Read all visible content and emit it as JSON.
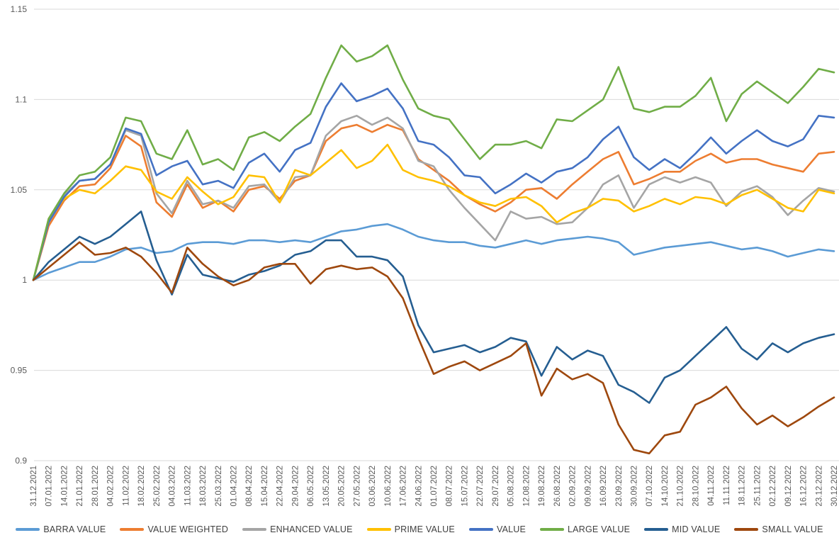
{
  "colors": {
    "background": "#FFFFFF",
    "gridline": "#D9D9D9",
    "axis_text": "#595959",
    "legend_text": "#404040"
  },
  "chart_data": {
    "type": "line",
    "title": "",
    "xlabel": "",
    "ylabel": "",
    "grid": "horizontal",
    "legend_position": "bottom",
    "ylim": [
      0.9,
      1.15
    ],
    "y_ticks": {
      "values": [
        0.9,
        0.95,
        1.0,
        1.05,
        1.1,
        1.15
      ],
      "labels": [
        "0.9",
        "0.95",
        "1",
        "1.05",
        "1.1",
        "1.15"
      ]
    },
    "x_labels": [
      "31.12.2021",
      "07.01.2022",
      "14.01.2022",
      "21.01.2022",
      "28.01.2022",
      "04.02.2022",
      "11.02.2022",
      "18.02.2022",
      "25.02.2022",
      "04.03.2022",
      "11.03.2022",
      "18.03.2022",
      "25.03.2022",
      "01.04.2022",
      "08.04.2022",
      "15.04.2022",
      "22.04.2022",
      "29.04.2022",
      "06.05.2022",
      "13.05.2022",
      "20.05.2022",
      "27.05.2022",
      "03.06.2022",
      "10.06.2022",
      "17.06.2022",
      "24.06.2022",
      "01.07.2022",
      "08.07.2022",
      "15.07.2022",
      "22.07.2022",
      "29.07.2022",
      "05.08.2022",
      "12.08.2022",
      "19.08.2022",
      "26.08.2022",
      "02.09.2022",
      "09.09.2022",
      "16.09.2022",
      "23.09.2022",
      "30.09.2022",
      "07.10.2022",
      "14.10.2022",
      "21.10.2022",
      "28.10.2022",
      "04.11.2022",
      "11.11.2022",
      "18.11.2022",
      "25.11.2022",
      "02.12.2022",
      "09.12.2022",
      "16.12.2022",
      "23.12.2022",
      "30.12.2022"
    ],
    "series": [
      {
        "name": "BARRA VALUE",
        "color": "#5B9BD5",
        "values": [
          1.0,
          1.004,
          1.007,
          1.01,
          1.01,
          1.013,
          1.017,
          1.018,
          1.015,
          1.016,
          1.02,
          1.021,
          1.021,
          1.02,
          1.022,
          1.022,
          1.021,
          1.022,
          1.021,
          1.024,
          1.027,
          1.028,
          1.03,
          1.031,
          1.028,
          1.024,
          1.022,
          1.021,
          1.021,
          1.019,
          1.018,
          1.02,
          1.022,
          1.02,
          1.022,
          1.023,
          1.024,
          1.023,
          1.021,
          1.014,
          1.016,
          1.018,
          1.019,
          1.02,
          1.021,
          1.019,
          1.017,
          1.018,
          1.016,
          1.013,
          1.015,
          1.017,
          1.016
        ]
      },
      {
        "name": "VALUE WEIGHTED",
        "color": "#ED7D31",
        "values": [
          1.0,
          1.03,
          1.044,
          1.052,
          1.053,
          1.062,
          1.08,
          1.074,
          1.043,
          1.035,
          1.053,
          1.04,
          1.044,
          1.038,
          1.05,
          1.052,
          1.045,
          1.055,
          1.058,
          1.077,
          1.084,
          1.086,
          1.082,
          1.086,
          1.083,
          1.067,
          1.061,
          1.055,
          1.047,
          1.042,
          1.038,
          1.043,
          1.05,
          1.051,
          1.045,
          1.053,
          1.06,
          1.067,
          1.071,
          1.053,
          1.056,
          1.06,
          1.06,
          1.066,
          1.07,
          1.065,
          1.067,
          1.067,
          1.064,
          1.062,
          1.06,
          1.07,
          1.071
        ]
      },
      {
        "name": "ENHANCED VALUE",
        "color": "#A5A5A5",
        "values": [
          1.0,
          1.033,
          1.047,
          1.055,
          1.056,
          1.064,
          1.083,
          1.08,
          1.048,
          1.037,
          1.055,
          1.042,
          1.044,
          1.04,
          1.052,
          1.053,
          1.043,
          1.057,
          1.058,
          1.08,
          1.088,
          1.091,
          1.086,
          1.09,
          1.084,
          1.066,
          1.063,
          1.05,
          1.04,
          1.031,
          1.022,
          1.038,
          1.034,
          1.035,
          1.031,
          1.032,
          1.04,
          1.053,
          1.058,
          1.04,
          1.053,
          1.057,
          1.054,
          1.057,
          1.054,
          1.041,
          1.049,
          1.052,
          1.046,
          1.036,
          1.044,
          1.051,
          1.049
        ]
      },
      {
        "name": "PRIME VALUE",
        "color": "#FFC000",
        "values": [
          1.0,
          1.034,
          1.045,
          1.05,
          1.048,
          1.055,
          1.063,
          1.061,
          1.049,
          1.045,
          1.057,
          1.049,
          1.042,
          1.046,
          1.058,
          1.057,
          1.043,
          1.061,
          1.058,
          1.065,
          1.072,
          1.062,
          1.066,
          1.075,
          1.061,
          1.057,
          1.055,
          1.052,
          1.047,
          1.043,
          1.041,
          1.045,
          1.046,
          1.041,
          1.032,
          1.037,
          1.04,
          1.045,
          1.044,
          1.038,
          1.041,
          1.045,
          1.042,
          1.046,
          1.045,
          1.042,
          1.047,
          1.05,
          1.045,
          1.04,
          1.038,
          1.05,
          1.048
        ]
      },
      {
        "name": "VALUE",
        "color": "#4472C4",
        "values": [
          1.0,
          1.032,
          1.046,
          1.055,
          1.056,
          1.064,
          1.084,
          1.081,
          1.058,
          1.063,
          1.066,
          1.053,
          1.055,
          1.051,
          1.065,
          1.07,
          1.06,
          1.072,
          1.076,
          1.096,
          1.109,
          1.099,
          1.102,
          1.106,
          1.095,
          1.077,
          1.075,
          1.068,
          1.058,
          1.057,
          1.048,
          1.053,
          1.059,
          1.054,
          1.06,
          1.062,
          1.068,
          1.078,
          1.085,
          1.068,
          1.061,
          1.067,
          1.062,
          1.07,
          1.079,
          1.07,
          1.077,
          1.083,
          1.077,
          1.074,
          1.078,
          1.091,
          1.09
        ]
      },
      {
        "name": "LARGE VALUE",
        "color": "#70AD47",
        "values": [
          1.0,
          1.034,
          1.048,
          1.058,
          1.06,
          1.068,
          1.09,
          1.088,
          1.07,
          1.067,
          1.083,
          1.064,
          1.067,
          1.061,
          1.079,
          1.082,
          1.077,
          1.085,
          1.092,
          1.112,
          1.13,
          1.121,
          1.124,
          1.13,
          1.111,
          1.095,
          1.091,
          1.089,
          1.078,
          1.067,
          1.075,
          1.075,
          1.077,
          1.073,
          1.089,
          1.088,
          1.094,
          1.1,
          1.118,
          1.095,
          1.093,
          1.096,
          1.096,
          1.102,
          1.112,
          1.088,
          1.103,
          1.11,
          1.104,
          1.098,
          1.107,
          1.117,
          1.115
        ]
      },
      {
        "name": "MID VALUE",
        "color": "#255E91",
        "values": [
          1.0,
          1.01,
          1.017,
          1.024,
          1.02,
          1.024,
          1.031,
          1.038,
          1.011,
          0.992,
          1.014,
          1.003,
          1.001,
          0.999,
          1.003,
          1.005,
          1.008,
          1.014,
          1.016,
          1.022,
          1.022,
          1.013,
          1.013,
          1.011,
          1.002,
          0.975,
          0.96,
          0.962,
          0.964,
          0.96,
          0.963,
          0.968,
          0.966,
          0.947,
          0.963,
          0.956,
          0.961,
          0.958,
          0.942,
          0.938,
          0.932,
          0.946,
          0.95,
          0.958,
          0.966,
          0.974,
          0.962,
          0.956,
          0.965,
          0.96,
          0.965,
          0.968,
          0.97
        ]
      },
      {
        "name": "SMALL VALUE",
        "color": "#9E480E",
        "values": [
          1.0,
          1.007,
          1.014,
          1.021,
          1.014,
          1.015,
          1.018,
          1.013,
          1.004,
          0.993,
          1.018,
          1.009,
          1.002,
          0.997,
          1.0,
          1.007,
          1.009,
          1.009,
          0.998,
          1.006,
          1.008,
          1.006,
          1.007,
          1.002,
          0.99,
          0.968,
          0.948,
          0.952,
          0.955,
          0.95,
          0.954,
          0.958,
          0.965,
          0.936,
          0.951,
          0.945,
          0.948,
          0.943,
          0.92,
          0.906,
          0.904,
          0.914,
          0.916,
          0.931,
          0.935,
          0.941,
          0.929,
          0.92,
          0.925,
          0.919,
          0.924,
          0.93,
          0.935
        ]
      }
    ]
  }
}
